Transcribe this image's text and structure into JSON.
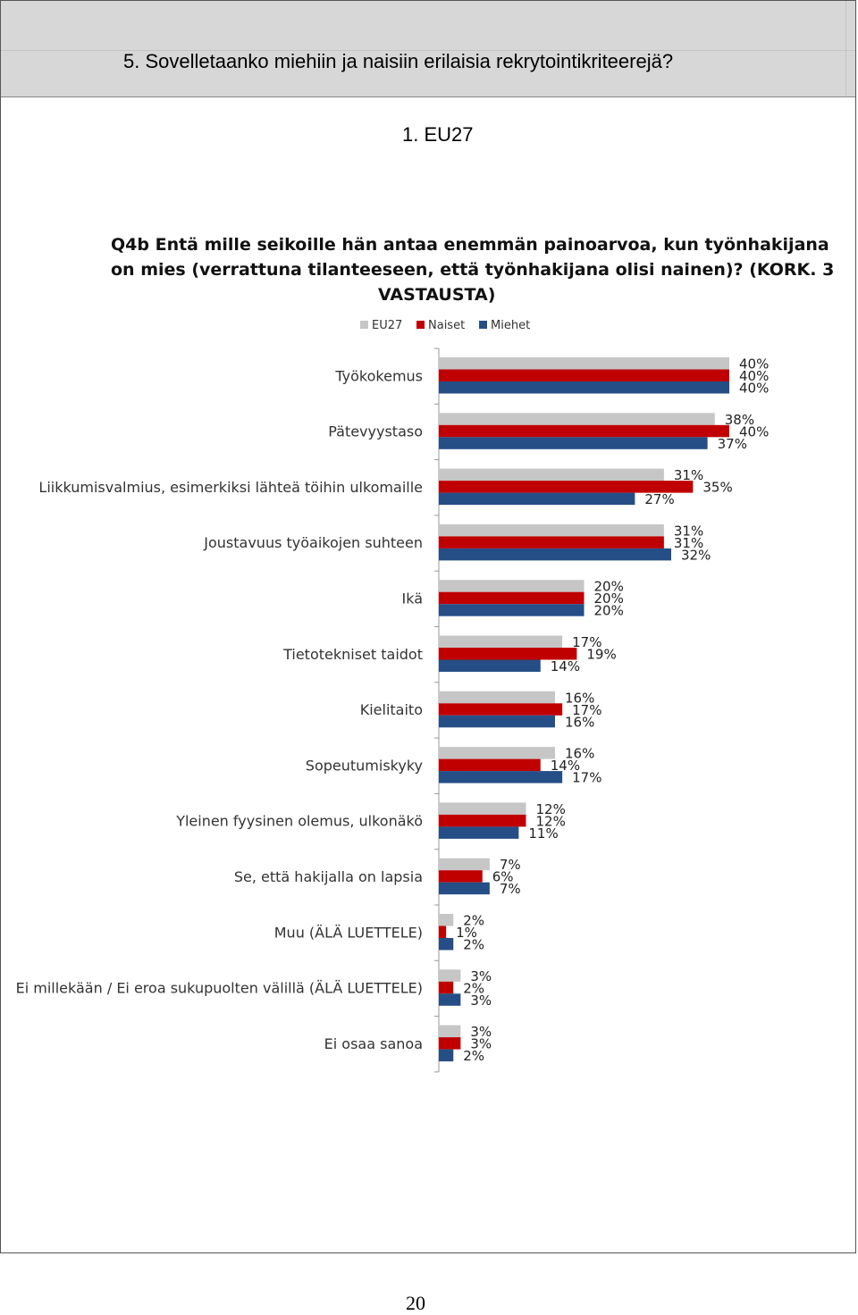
{
  "page": {
    "section_heading": "5.  Sovelletaanko miehiin ja naisiin erilaisia rekrytointikriteerejä?",
    "subsection_heading": "1.  EU27",
    "page_number": "20"
  },
  "colors": {
    "EU27": "#c6c6c6",
    "Naiset": "#c00000",
    "Miehet": "#254e86"
  },
  "chart_data": {
    "type": "bar",
    "orientation": "horizontal",
    "title": "Q4b Entä mille seikoille hän antaa enemmän painoarvoa, kun työnhakijana on mies (verrattuna tilanteeseen, että työnhakijana olisi nainen)? (KORK. 3 VASTAUSTA)",
    "title_lines": [
      "Q4b Entä mille seikoille hän antaa enemmän painoarvoa, kun työnhakijana",
      "on mies (verrattuna tilanteeseen, että työnhakijana olisi nainen)? (KORK. 3",
      "VASTAUSTA)"
    ],
    "legend_position": "top",
    "unit": "%",
    "xlim": [
      0,
      40
    ],
    "grid": false,
    "categories": [
      "Työkokemus",
      "Pätevyystaso",
      "Liikkumisvalmius, esimerkiksi lähteä töihin ulkomaille",
      "Joustavuus työaikojen suhteen",
      "Ikä",
      "Tietotekniset taidot",
      "Kielitaito",
      "Sopeutumiskyky",
      "Yleinen fyysinen olemus, ulkonäkö",
      "Se, että hakijalla on lapsia",
      "Muu (ÄLÄ LUETTELE)",
      "Ei millekään / Ei eroa sukupuolten välillä (ÄLÄ LUETTELE)",
      "Ei osaa sanoa"
    ],
    "series": [
      {
        "name": "EU27",
        "values": [
          40,
          38,
          31,
          31,
          20,
          17,
          16,
          16,
          12,
          7,
          2,
          3,
          3
        ]
      },
      {
        "name": "Naiset",
        "values": [
          40,
          40,
          35,
          31,
          20,
          19,
          17,
          14,
          12,
          6,
          1,
          2,
          3
        ]
      },
      {
        "name": "Miehet",
        "values": [
          40,
          37,
          27,
          32,
          20,
          14,
          16,
          17,
          11,
          7,
          2,
          3,
          2
        ]
      }
    ]
  }
}
